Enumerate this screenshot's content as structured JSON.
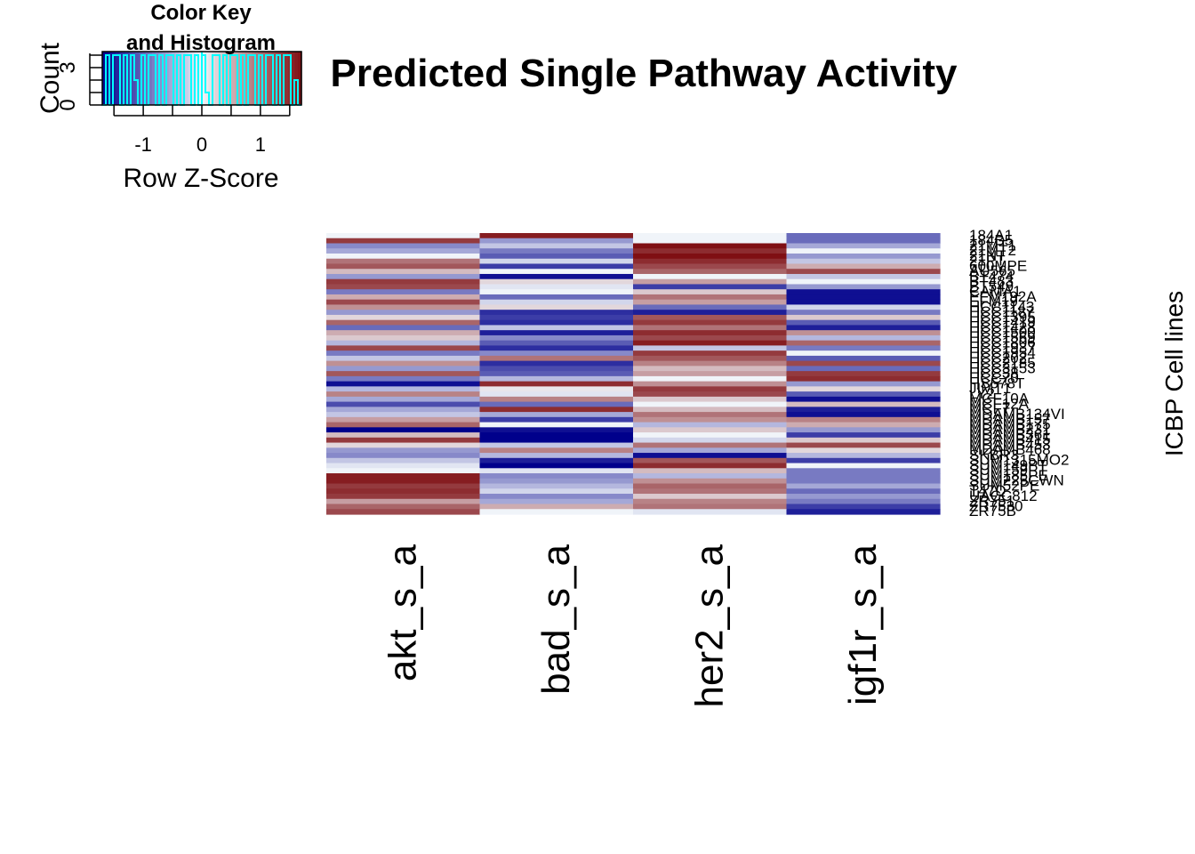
{
  "chart_data": {
    "type": "heatmap",
    "title": "Predicted Single Pathway Activity",
    "ylabel": "ICBP Cell lines",
    "columns": [
      "akt_s_a",
      "bad_s_a",
      "her2_s_a",
      "igf1r_s_a"
    ],
    "rows": [
      "184A1",
      "184B5",
      "21MT1",
      "21MT2",
      "21NT",
      "21PT",
      "600MPE",
      "AU565",
      "BT474",
      "BT483",
      "BT549",
      "CAMA1",
      "EFM192A",
      "EFM19",
      "HCC1143",
      "HCC1187",
      "HCC1395",
      "HCC1419",
      "HCC1428",
      "HCC1500",
      "HCC1569",
      "HCC1806",
      "HCC1937",
      "HCC1954",
      "HCC202",
      "HCC2185",
      "HCC3153",
      "HCC38",
      "HCC70",
      "HS578T",
      "JIMT1",
      "LY2",
      "MCF10A",
      "MCF12A",
      "MCF7",
      "MDAMB134VI",
      "MDAMB157",
      "MDAMB175",
      "MDAMB231",
      "MDAMB361",
      "MDAMB415",
      "MDAMB453",
      "MDAMB468",
      "SKBR3",
      "SUM1315MO2",
      "SUM149PT",
      "SUM159PT",
      "SUM185PE",
      "SUM225CWN",
      "SUM52PE",
      "T47D",
      "UACC812",
      "ZR751",
      "ZR7530",
      "ZR75B"
    ],
    "values": [
      [
        0.0,
        1.5,
        0.0,
        -0.9
      ],
      [
        1.3,
        -0.6,
        0.0,
        -0.9
      ],
      [
        -0.7,
        -0.3,
        1.6,
        -0.5
      ],
      [
        -0.5,
        -0.8,
        1.4,
        0.0
      ],
      [
        0.0,
        -1.0,
        1.6,
        -0.6
      ],
      [
        0.9,
        -0.2,
        1.4,
        -0.3
      ],
      [
        1.1,
        -1.2,
        1.2,
        0.5
      ],
      [
        0.4,
        0.0,
        1.0,
        1.2
      ],
      [
        -0.6,
        -1.5,
        0.0,
        -0.3
      ],
      [
        1.3,
        0.2,
        0.6,
        0.0
      ],
      [
        1.2,
        -0.1,
        -1.2,
        -0.6
      ],
      [
        -0.8,
        0.0,
        0.3,
        -1.5
      ],
      [
        0.5,
        -0.9,
        0.9,
        -1.5
      ],
      [
        1.2,
        -0.2,
        0.6,
        -1.5
      ],
      [
        0.7,
        0.2,
        -0.9,
        -0.2
      ],
      [
        -0.6,
        -1.3,
        -1.4,
        -0.8
      ],
      [
        0.2,
        -1.2,
        1.1,
        0.3
      ],
      [
        1.0,
        -1.3,
        1.3,
        -1.0
      ],
      [
        -0.9,
        -0.3,
        0.9,
        -1.4
      ],
      [
        0.5,
        -1.4,
        1.4,
        0.7
      ],
      [
        0.3,
        -0.7,
        1.2,
        -0.4
      ],
      [
        -0.4,
        -1.0,
        1.5,
        1.0
      ],
      [
        1.2,
        -1.3,
        -0.3,
        -0.8
      ],
      [
        -0.8,
        -0.7,
        1.3,
        0.0
      ],
      [
        -0.3,
        0.9,
        1.1,
        -1.0
      ],
      [
        0.7,
        -1.3,
        0.8,
        1.2
      ],
      [
        -0.6,
        -1.1,
        0.4,
        -0.9
      ],
      [
        1.1,
        -1.0,
        0.6,
        1.3
      ],
      [
        -0.8,
        -0.4,
        0.0,
        1.4
      ],
      [
        -1.5,
        1.4,
        0.7,
        -0.6
      ],
      [
        -0.4,
        0.1,
        1.3,
        0.2
      ],
      [
        0.8,
        -0.1,
        1.2,
        -1.0
      ],
      [
        -0.5,
        0.8,
        0.3,
        -1.5
      ],
      [
        -1.1,
        -0.9,
        0.0,
        0.4
      ],
      [
        -0.5,
        1.4,
        0.4,
        -1.4
      ],
      [
        -0.3,
        -0.5,
        0.9,
        -1.5
      ],
      [
        0.6,
        -1.2,
        0.7,
        0.8
      ],
      [
        1.0,
        0.0,
        -0.4,
        0.5
      ],
      [
        -1.6,
        -1.5,
        0.3,
        -0.6
      ],
      [
        0.4,
        -1.6,
        0.0,
        -1.2
      ],
      [
        1.3,
        -1.6,
        -0.2,
        0.3
      ],
      [
        0.2,
        -0.3,
        0.9,
        1.2
      ],
      [
        -0.6,
        0.8,
        -0.5,
        0.2
      ],
      [
        -0.7,
        -0.4,
        -1.5,
        -0.4
      ],
      [
        -0.3,
        -1.4,
        1.1,
        -1.2
      ],
      [
        -0.1,
        -1.6,
        1.4,
        0.0
      ],
      [
        0.0,
        -0.1,
        0.4,
        -0.8
      ],
      [
        1.5,
        -0.7,
        -0.4,
        -0.8
      ],
      [
        1.5,
        -0.6,
        0.7,
        -0.8
      ],
      [
        1.3,
        -0.4,
        1.0,
        -0.5
      ],
      [
        1.4,
        -0.2,
        0.9,
        -0.9
      ],
      [
        1.3,
        -0.7,
        0.3,
        -0.6
      ],
      [
        0.6,
        -0.5,
        0.8,
        -0.8
      ],
      [
        1.0,
        0.5,
        0.9,
        -1.2
      ],
      [
        1.2,
        0.0,
        -0.1,
        -1.4
      ]
    ],
    "colorscale": {
      "low": "#00008b",
      "mid": "#f0f4f9",
      "high": "#7f0f13"
    },
    "key": {
      "title_line1": "Color Key",
      "title_line2": "and Histogram",
      "xlabel": "Row Z-Score",
      "ylabel": "Count",
      "xticks": [
        "-1",
        "0",
        "1"
      ],
      "yticks": [
        "0",
        "3"
      ],
      "histogram_color": "#00ffff"
    }
  }
}
